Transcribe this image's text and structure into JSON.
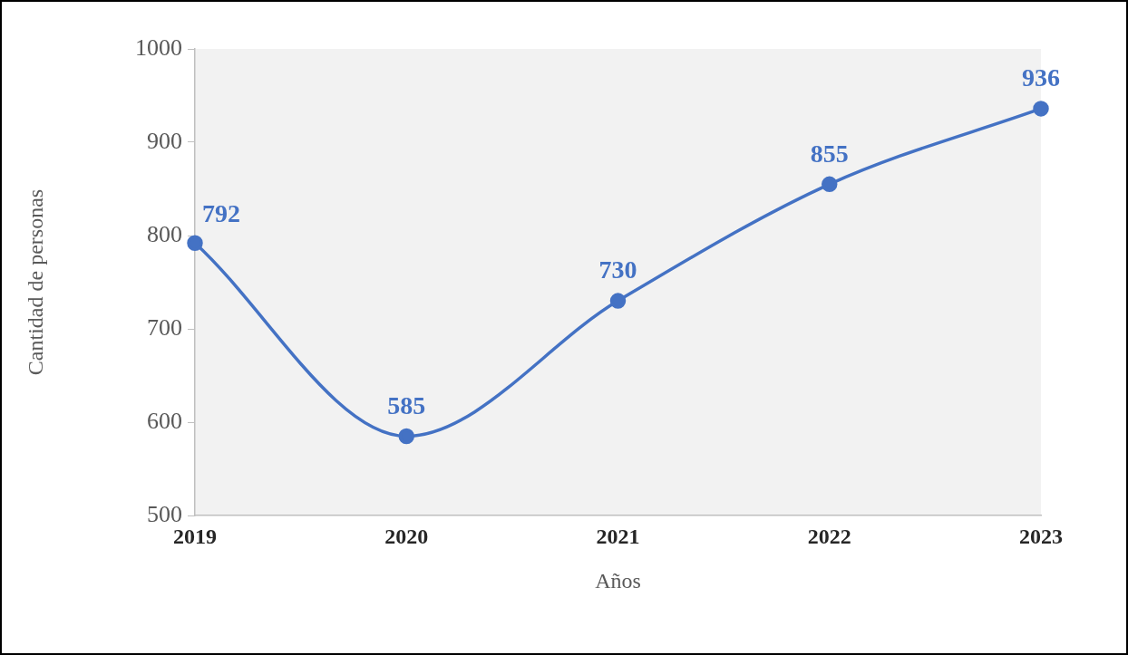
{
  "chart_data": {
    "type": "line",
    "xlabel": "Años",
    "ylabel": "Cantidad de personas",
    "categories": [
      "2019",
      "2020",
      "2021",
      "2022",
      "2023"
    ],
    "series": [
      {
        "color": "#4472c4",
        "values": [
          792,
          585,
          730,
          855,
          936
        ]
      }
    ],
    "ylim": [
      500,
      1000
    ],
    "yticks": [
      500,
      600,
      700,
      800,
      900,
      1000
    ],
    "grid": false,
    "legend": false,
    "marker": "circle",
    "line_style": "solid",
    "data_labels": true
  }
}
